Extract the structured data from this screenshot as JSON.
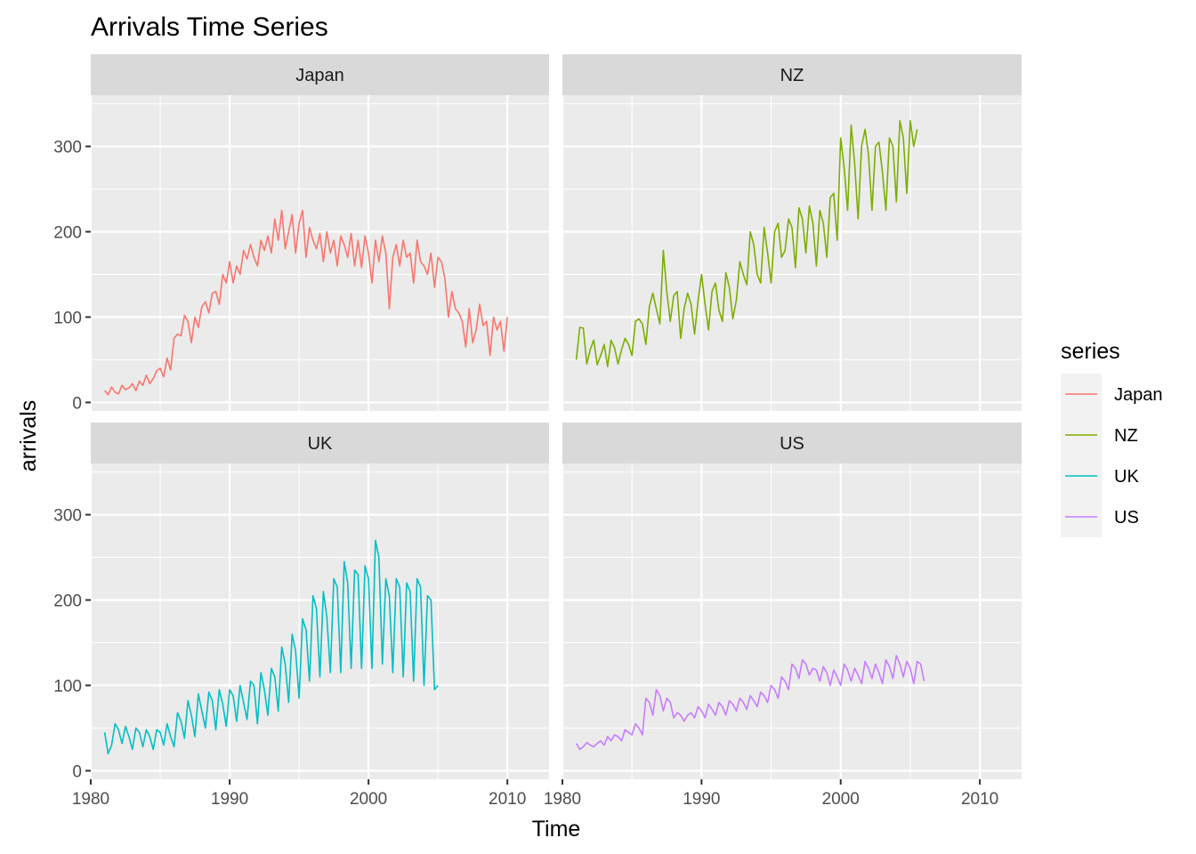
{
  "chart_data": {
    "type": "line",
    "title": "Arrivals Time Series",
    "xlabel": "Time",
    "ylabel": "arrivals",
    "xlim": [
      1980,
      2013
    ],
    "ylim": [
      -10,
      360
    ],
    "x_ticks": [
      1980,
      1990,
      2000,
      2010
    ],
    "y_ticks": [
      0,
      100,
      200,
      300
    ],
    "facet_layout": "2x2",
    "grid": true,
    "legend": {
      "title": "series",
      "placement": "right",
      "entries": [
        "Japan",
        "NZ",
        "UK",
        "US"
      ]
    },
    "frequency": "quarterly",
    "start": 1981.0,
    "series": [
      {
        "name": "Japan",
        "color": "#F8766D",
        "values": [
          14,
          9,
          18,
          12,
          10,
          20,
          15,
          17,
          22,
          14,
          25,
          20,
          32,
          22,
          28,
          37,
          40,
          30,
          52,
          38,
          75,
          80,
          78,
          102,
          95,
          70,
          100,
          88,
          112,
          118,
          105,
          128,
          130,
          115,
          150,
          140,
          165,
          140,
          160,
          150,
          178,
          168,
          185,
          170,
          160,
          190,
          178,
          195,
          175,
          215,
          190,
          225,
          180,
          200,
          220,
          175,
          210,
          225,
          170,
          205,
          190,
          180,
          198,
          165,
          200,
          175,
          190,
          160,
          195,
          185,
          170,
          198,
          160,
          190,
          158,
          195,
          175,
          140,
          190,
          165,
          195,
          175,
          110,
          170,
          185,
          160,
          190,
          170,
          175,
          140,
          190,
          165,
          160,
          150,
          175,
          135,
          170,
          165,
          145,
          100,
          130,
          110,
          105,
          95,
          65,
          110,
          70,
          85,
          115,
          90,
          95,
          55,
          100,
          85,
          95,
          60,
          100
        ]
      },
      {
        "name": "NZ",
        "color": "#7CAE00",
        "values": [
          50,
          88,
          87,
          45,
          62,
          73,
          44,
          55,
          68,
          42,
          73,
          64,
          45,
          62,
          75,
          68,
          55,
          95,
          98,
          92,
          68,
          112,
          128,
          110,
          92,
          178,
          130,
          95,
          125,
          130,
          75,
          110,
          128,
          115,
          80,
          120,
          150,
          115,
          85,
          130,
          140,
          108,
          95,
          152,
          135,
          98,
          120,
          165,
          150,
          138,
          200,
          185,
          150,
          140,
          205,
          175,
          140,
          200,
          210,
          170,
          178,
          215,
          205,
          158,
          228,
          215,
          175,
          230,
          210,
          160,
          225,
          210,
          170,
          240,
          245,
          190,
          310,
          275,
          225,
          325,
          280,
          215,
          300,
          320,
          290,
          225,
          300,
          305,
          270,
          225,
          310,
          300,
          235,
          330,
          310,
          245,
          330,
          300,
          320
        ]
      },
      {
        "name": "UK",
        "color": "#00BFC4",
        "values": [
          45,
          20,
          30,
          55,
          48,
          32,
          52,
          40,
          25,
          50,
          45,
          28,
          48,
          40,
          25,
          48,
          45,
          30,
          55,
          40,
          28,
          68,
          58,
          38,
          82,
          65,
          40,
          90,
          70,
          50,
          92,
          82,
          48,
          95,
          78,
          52,
          95,
          88,
          58,
          100,
          80,
          60,
          105,
          100,
          55,
          115,
          95,
          65,
          120,
          110,
          70,
          145,
          125,
          80,
          160,
          140,
          85,
          178,
          165,
          105,
          205,
          190,
          110,
          210,
          180,
          115,
          225,
          215,
          115,
          245,
          220,
          120,
          235,
          230,
          120,
          240,
          225,
          120,
          270,
          250,
          125,
          225,
          205,
          115,
          225,
          215,
          110,
          220,
          210,
          105,
          225,
          215,
          100,
          205,
          200,
          95,
          100
        ]
      },
      {
        "name": "US",
        "color": "#C77CFF",
        "values": [
          32,
          25,
          28,
          33,
          30,
          28,
          32,
          35,
          30,
          40,
          35,
          42,
          40,
          35,
          48,
          45,
          42,
          55,
          50,
          42,
          85,
          80,
          65,
          95,
          88,
          70,
          85,
          80,
          62,
          68,
          65,
          58,
          65,
          68,
          62,
          75,
          70,
          62,
          78,
          72,
          65,
          80,
          75,
          65,
          82,
          78,
          70,
          85,
          80,
          72,
          88,
          82,
          75,
          92,
          88,
          80,
          100,
          95,
          85,
          110,
          105,
          95,
          125,
          120,
          108,
          130,
          125,
          112,
          120,
          118,
          105,
          122,
          115,
          100,
          118,
          110,
          100,
          125,
          118,
          105,
          120,
          112,
          102,
          128,
          120,
          108,
          125,
          115,
          102,
          130,
          122,
          108,
          135,
          125,
          110,
          128,
          120,
          102,
          128,
          125,
          105
        ]
      }
    ]
  }
}
